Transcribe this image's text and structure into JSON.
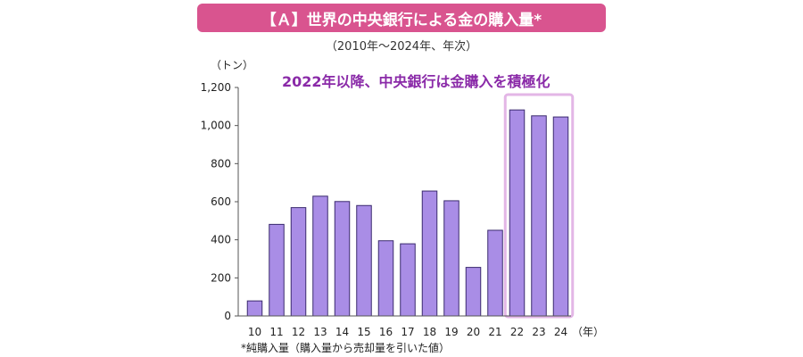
{
  "chart_data": {
    "type": "bar",
    "title": "【Ａ】世界の中央銀行による金の購入量*",
    "subtitle": "（2010年～2024年、年次）",
    "ylabel": "（トン）",
    "xlabel": "（年）",
    "annotation": "2022年以降、中央銀行は金購入を積極化",
    "footnote": "*純購入量（購入量から売却量を引いた値）",
    "categories": [
      "10",
      "11",
      "12",
      "13",
      "14",
      "15",
      "16",
      "17",
      "18",
      "19",
      "20",
      "21",
      "22",
      "23",
      "24"
    ],
    "values": [
      79,
      481,
      569,
      629,
      601,
      580,
      395,
      379,
      656,
      605,
      255,
      450,
      1082,
      1051,
      1045
    ],
    "ylim": [
      0,
      1200
    ],
    "yticks": [
      0,
      200,
      400,
      600,
      800,
      1000,
      1200
    ],
    "ytick_labels": [
      "0",
      "200",
      "400",
      "600",
      "800",
      "1,000",
      "1,200"
    ],
    "highlight_categories": [
      "22",
      "23",
      "24"
    ],
    "bar_color": "#a98de6",
    "bar_edge_color": "#3a2a6e",
    "highlight_box_color": "#e3b6e6",
    "grid": false
  }
}
